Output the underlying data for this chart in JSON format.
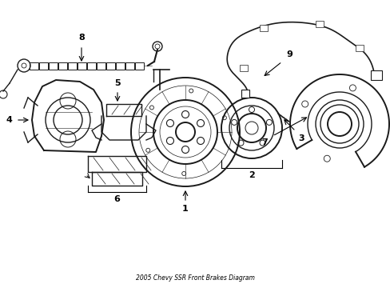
{
  "title": "2005 Chevy SSR Front Brakes Diagram",
  "bg_color": "#ffffff",
  "line_color": "#1a1a1a",
  "figsize": [
    4.89,
    3.6
  ],
  "dpi": 100,
  "layout": {
    "xlim": [
      0,
      489
    ],
    "ylim": [
      0,
      360
    ]
  }
}
